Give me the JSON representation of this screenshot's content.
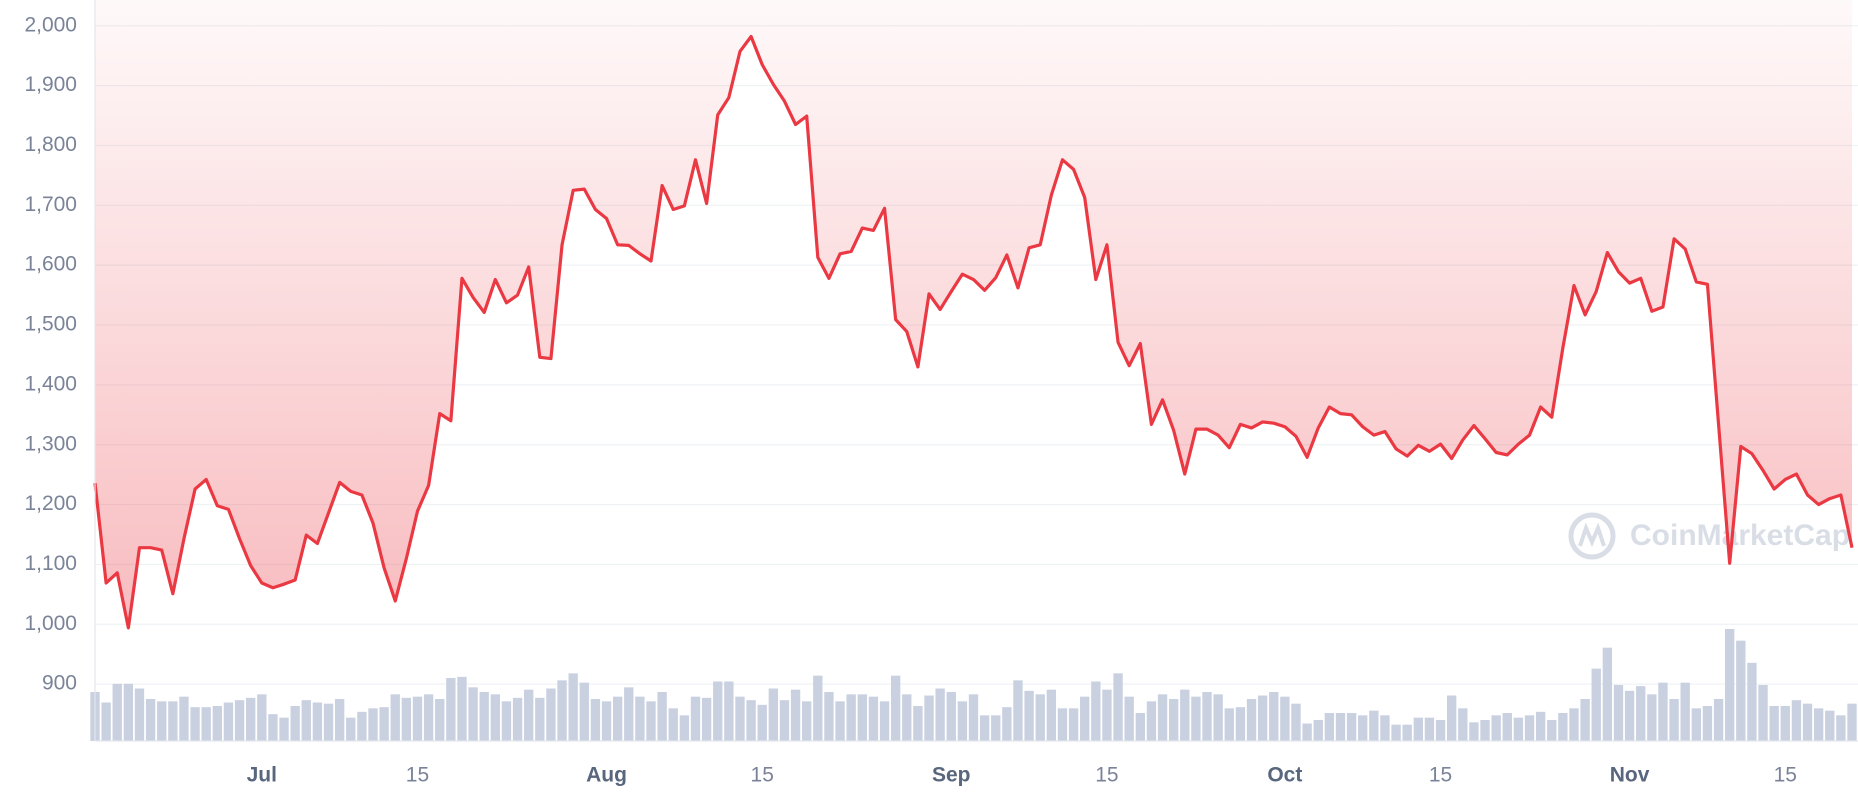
{
  "chart_data": {
    "type": "line",
    "watermark": "CoinMarketCap",
    "color": "#ea3943",
    "volume_color": "#c9d0e0",
    "grid": true,
    "ylim": [
      805,
      2043
    ],
    "yticks": [
      900,
      {
        "value": 1000,
        "label": "1,000"
      },
      {
        "value": 1100,
        "label": "1,100"
      },
      {
        "value": 1200,
        "label": "1,200"
      },
      {
        "value": 1300,
        "label": "1,300"
      },
      {
        "value": 1400,
        "label": "1,400"
      },
      {
        "value": 1500,
        "label": "1,500"
      },
      {
        "value": 1600,
        "label": "1,600"
      },
      {
        "value": 1700,
        "label": "1,700"
      },
      {
        "value": 1800,
        "label": "1,800"
      },
      {
        "value": 1900,
        "label": "1,900"
      },
      {
        "value": 2000,
        "label": "2,000"
      }
    ],
    "xticks": [
      {
        "value": "Jul 1",
        "label": "Jul"
      },
      {
        "value": "Jul 15",
        "label": "15"
      },
      {
        "value": "Aug 1",
        "label": "Aug"
      },
      {
        "value": "Aug 15",
        "label": "15"
      },
      {
        "value": "Sep 1",
        "label": "Sep"
      },
      {
        "value": "Sep 15",
        "label": "15"
      },
      {
        "value": "Oct 1",
        "label": "Oct"
      },
      {
        "value": "Oct 15",
        "label": "15"
      },
      {
        "value": "Nov 1",
        "label": "Nov"
      },
      {
        "value": "Nov 15",
        "label": "15"
      }
    ],
    "x": [
      "Jun 16",
      "Jun 17",
      "Jun 18",
      "Jun 19",
      "Jun 20",
      "Jun 21",
      "Jun 22",
      "Jun 23",
      "Jun 24",
      "Jun 25",
      "Jun 26",
      "Jun 27",
      "Jun 28",
      "Jun 29",
      "Jun 30",
      "Jul 1",
      "Jul 2",
      "Jul 3",
      "Jul 4",
      "Jul 5",
      "Jul 6",
      "Jul 7",
      "Jul 8",
      "Jul 9",
      "Jul 10",
      "Jul 11",
      "Jul 12",
      "Jul 13",
      "Jul 14",
      "Jul 15",
      "Jul 16",
      "Jul 17",
      "Jul 18",
      "Jul 19",
      "Jul 20",
      "Jul 21",
      "Jul 22",
      "Jul 23",
      "Jul 24",
      "Jul 25",
      "Jul 26",
      "Jul 27",
      "Jul 28",
      "Jul 29",
      "Jul 30",
      "Jul 31",
      "Aug 1",
      "Aug 2",
      "Aug 3",
      "Aug 4",
      "Aug 5",
      "Aug 6",
      "Aug 7",
      "Aug 8",
      "Aug 9",
      "Aug 10",
      "Aug 11",
      "Aug 12",
      "Aug 13",
      "Aug 14",
      "Aug 15",
      "Aug 16",
      "Aug 17",
      "Aug 18",
      "Aug 19",
      "Aug 20",
      "Aug 21",
      "Aug 22",
      "Aug 23",
      "Aug 24",
      "Aug 25",
      "Aug 26",
      "Aug 27",
      "Aug 28",
      "Aug 29",
      "Aug 30",
      "Aug 31",
      "Sep 1",
      "Sep 2",
      "Sep 3",
      "Sep 4",
      "Sep 5",
      "Sep 6",
      "Sep 7",
      "Sep 8",
      "Sep 9",
      "Sep 10",
      "Sep 11",
      "Sep 12",
      "Sep 13",
      "Sep 14",
      "Sep 15",
      "Sep 16",
      "Sep 17",
      "Sep 18",
      "Sep 19",
      "Sep 20",
      "Sep 21",
      "Sep 22",
      "Sep 23",
      "Sep 24",
      "Sep 25",
      "Sep 26",
      "Sep 27",
      "Sep 28",
      "Sep 29",
      "Sep 30",
      "Oct 1",
      "Oct 2",
      "Oct 3",
      "Oct 4",
      "Oct 5",
      "Oct 6",
      "Oct 7",
      "Oct 8",
      "Oct 9",
      "Oct 10",
      "Oct 11",
      "Oct 12",
      "Oct 13",
      "Oct 14",
      "Oct 15",
      "Oct 16",
      "Oct 17",
      "Oct 18",
      "Oct 19",
      "Oct 20",
      "Oct 21",
      "Oct 22",
      "Oct 23",
      "Oct 24",
      "Oct 25",
      "Oct 26",
      "Oct 27",
      "Oct 28",
      "Oct 29",
      "Oct 30",
      "Oct 31",
      "Nov 1",
      "Nov 2",
      "Nov 3",
      "Nov 4",
      "Nov 5",
      "Nov 6",
      "Nov 7",
      "Nov 8",
      "Nov 9",
      "Nov 10",
      "Nov 11",
      "Nov 12",
      "Nov 13",
      "Nov 14",
      "Nov 15",
      "Nov 16",
      "Nov 17",
      "Nov 18",
      "Nov 19",
      "Nov 20",
      "Nov 21"
    ],
    "values": [
      1236,
      1069,
      1086,
      994,
      1128,
      1128,
      1124,
      1051,
      1143,
      1226,
      1242,
      1198,
      1192,
      1143,
      1098,
      1069,
      1061,
      1067,
      1074,
      1149,
      1135,
      1186,
      1237,
      1222,
      1216,
      1169,
      1094,
      1039,
      1110,
      1189,
      1232,
      1352,
      1340,
      1578,
      1546,
      1521,
      1576,
      1537,
      1550,
      1597,
      1446,
      1444,
      1634,
      1725,
      1727,
      1693,
      1678,
      1634,
      1633,
      1619,
      1607,
      1733,
      1693,
      1699,
      1776,
      1703,
      1851,
      1880,
      1957,
      1982,
      1935,
      1902,
      1874,
      1835,
      1849,
      1613,
      1578,
      1619,
      1623,
      1662,
      1658,
      1695,
      1509,
      1489,
      1430,
      1552,
      1526,
      1556,
      1585,
      1576,
      1558,
      1579,
      1617,
      1562,
      1629,
      1634,
      1717,
      1776,
      1760,
      1713,
      1576,
      1634,
      1471,
      1432,
      1469,
      1334,
      1375,
      1324,
      1251,
      1326,
      1326,
      1316,
      1295,
      1334,
      1328,
      1338,
      1336,
      1330,
      1314,
      1279,
      1328,
      1363,
      1352,
      1350,
      1330,
      1316,
      1322,
      1293,
      1281,
      1299,
      1289,
      1301,
      1277,
      1308,
      1332,
      1310,
      1287,
      1283,
      1301,
      1316,
      1363,
      1346,
      1462,
      1566,
      1517,
      1556,
      1621,
      1589,
      1570,
      1578,
      1523,
      1530,
      1644,
      1627,
      1572,
      1568,
      1334,
      1102,
      1297,
      1285,
      1257,
      1226,
      1242,
      1251,
      1216,
      1200,
      1210,
      1216,
      1128
    ],
    "volume": [
      42,
      33,
      49,
      49,
      45,
      36,
      34,
      34,
      38,
      29,
      29,
      30,
      33,
      35,
      37,
      40,
      23,
      20,
      30,
      35,
      33,
      32,
      36,
      20,
      25,
      28,
      29,
      40,
      37,
      38,
      40,
      36,
      54,
      55,
      46,
      42,
      40,
      34,
      37,
      44,
      37,
      45,
      52,
      58,
      50,
      36,
      34,
      38,
      46,
      38,
      34,
      42,
      28,
      22,
      38,
      37,
      51,
      51,
      38,
      35,
      31,
      45,
      35,
      44,
      34,
      56,
      42,
      34,
      40,
      40,
      38,
      34,
      56,
      40,
      30,
      39,
      45,
      42,
      34,
      40,
      22,
      22,
      29,
      52,
      43,
      40,
      44,
      28,
      28,
      38,
      51,
      44,
      58,
      38,
      24,
      34,
      40,
      36,
      44,
      38,
      42,
      40,
      28,
      29,
      36,
      39,
      42,
      38,
      32,
      15,
      18,
      24,
      24,
      24,
      22,
      26,
      22,
      14,
      14,
      20,
      20,
      18,
      39,
      28,
      16,
      18,
      22,
      24,
      20,
      22,
      25,
      18,
      24,
      28,
      36,
      62,
      80,
      48,
      43,
      47,
      40,
      50,
      36,
      50,
      28,
      30,
      36,
      96,
      86,
      67,
      48,
      30,
      30,
      35,
      32,
      28,
      26,
      22,
      32
    ]
  }
}
